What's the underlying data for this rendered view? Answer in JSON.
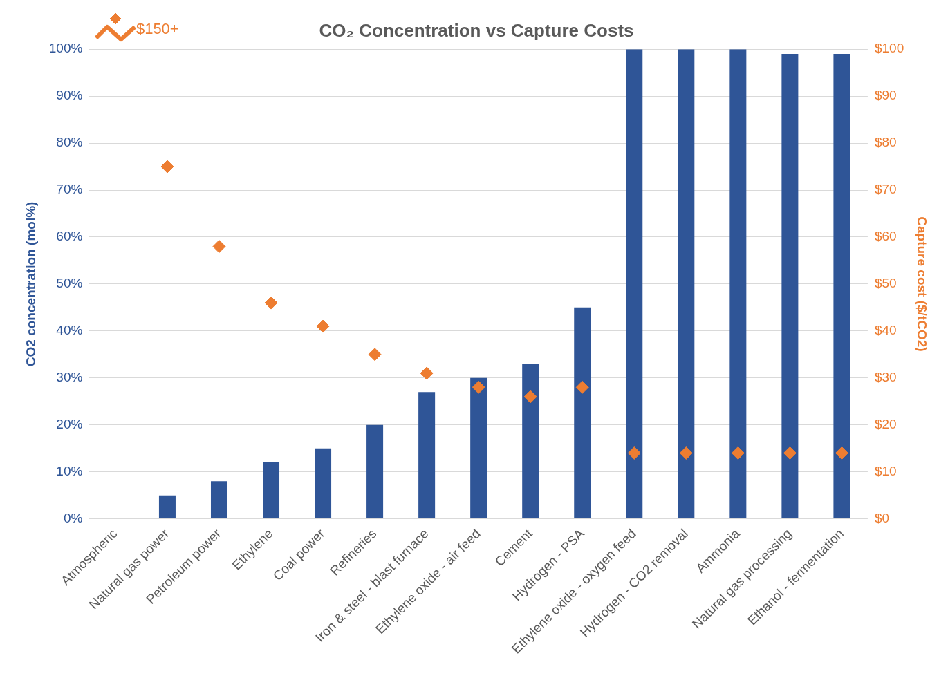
{
  "chart_data": {
    "type": "bar",
    "title": "CO₂ Concentration vs Capture Costs",
    "ylabel": "CO2 concentration (mol%)",
    "y2label": "Capture cost ($/tCO2)",
    "categories": [
      "Atmospheric",
      "Natural gas power",
      "Petroleum power",
      "Ethylene",
      "Coal power",
      "Refineries",
      "Iron & steel - blast furnace",
      "Ethylene oxide - air feed",
      "Cement",
      "Hydrogen - PSA",
      "Ethylene oxide - oxygen feed",
      "Hydrogen - CO2 removal",
      "Ammonia",
      "Natural gas processing",
      "Ethanol - fermentation"
    ],
    "series": [
      {
        "color": "#2f5597",
        "values": [
          0,
          5,
          8,
          12,
          15,
          20,
          27,
          30,
          33,
          45,
          100,
          100,
          100,
          99,
          99
        ]
      },
      {
        "type": "scatter",
        "axis": "y2",
        "color": "#ed7d31",
        "marker": "diamond",
        "x": [
          "Atmospheric",
          "Natural gas power",
          "Petroleum power",
          "Ethylene",
          "Coal power",
          "Refineries",
          "Iron & steel - blast furnace",
          "Ethylene oxide - air feed",
          "Cement",
          "Hydrogen - PSA",
          "Ethylene oxide - oxygen feed",
          "Hydrogen - CO2 removal",
          "Ammonia",
          "Natural gas processing",
          "Ethanol - fermentation"
        ],
        "values": [
          null,
          75,
          58,
          46,
          41,
          35,
          31,
          28,
          26,
          28,
          14,
          14,
          14,
          14,
          14
        ]
      }
    ],
    "ylim": [
      0,
      100
    ],
    "yticks": [
      {
        "value": 0,
        "label": "0%"
      },
      {
        "value": 10,
        "label": "10%"
      },
      {
        "value": 20,
        "label": "20%"
      },
      {
        "value": 30,
        "label": "30%"
      },
      {
        "value": 40,
        "label": "40%"
      },
      {
        "value": 50,
        "label": "50%"
      },
      {
        "value": 60,
        "label": "60%"
      },
      {
        "value": 70,
        "label": "70%"
      },
      {
        "value": 80,
        "label": "80%"
      },
      {
        "value": 90,
        "label": "90%"
      },
      {
        "value": 100,
        "label": "100%"
      }
    ],
    "y2lim": [
      0,
      100
    ],
    "y2ticks": [
      {
        "value": 0,
        "label": "$0"
      },
      {
        "value": 10,
        "label": "$10"
      },
      {
        "value": 20,
        "label": "$20"
      },
      {
        "value": 30,
        "label": "$30"
      },
      {
        "value": 40,
        "label": "$40"
      },
      {
        "value": 50,
        "label": "$50"
      },
      {
        "value": 60,
        "label": "$60"
      },
      {
        "value": 70,
        "label": "$70"
      },
      {
        "value": 80,
        "label": "$80"
      },
      {
        "value": 90,
        "label": "$90"
      },
      {
        "value": 100,
        "label": "$100"
      }
    ],
    "grid": "y",
    "legend": false,
    "annotations": [
      "$150+"
    ]
  }
}
